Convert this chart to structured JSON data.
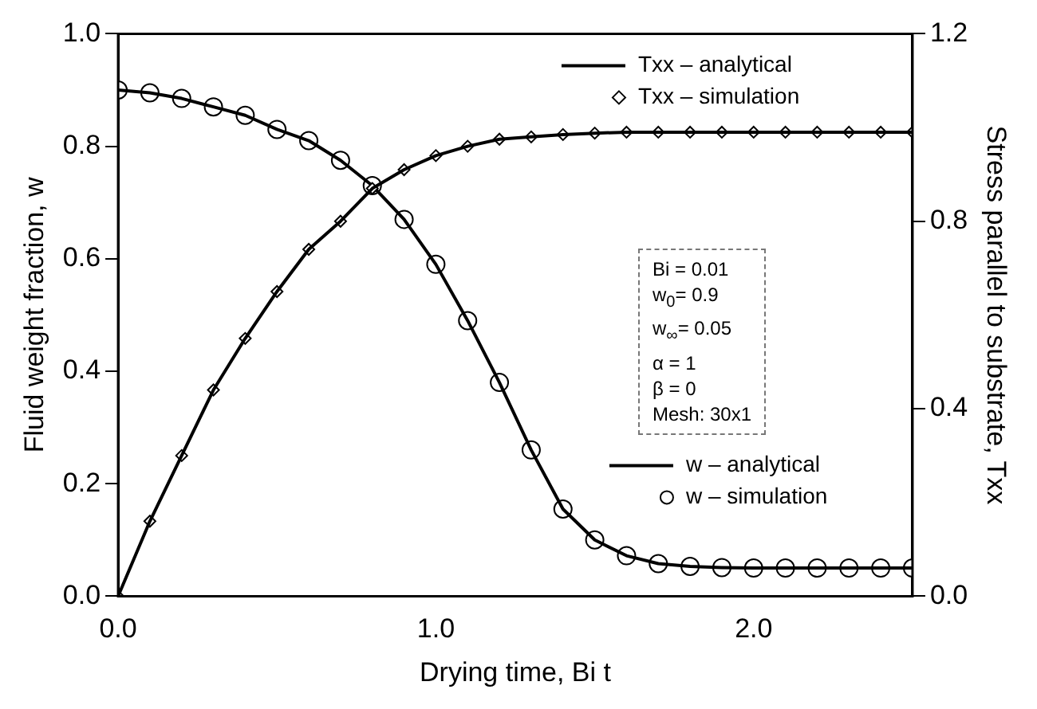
{
  "chart_data": {
    "type": "line",
    "xlabel": "Drying time, Bi t",
    "ylabel": "Fluid weight fraction, w",
    "y2label": "Stress parallel to substrate, Txx",
    "xlim": [
      0,
      2.5
    ],
    "xticks": [
      {
        "value": 0,
        "label": "0.0"
      },
      {
        "value": 1,
        "label": "1.0"
      },
      {
        "value": 2,
        "label": "2.0"
      }
    ],
    "ylim": [
      0,
      1
    ],
    "yticks": [
      {
        "value": 0,
        "label": "0.0"
      },
      {
        "value": 0.2,
        "label": "0.2"
      },
      {
        "value": 0.4,
        "label": "0.4"
      },
      {
        "value": 0.6,
        "label": "0.6"
      },
      {
        "value": 0.8,
        "label": "0.8"
      },
      {
        "value": 1,
        "label": "1.0"
      }
    ],
    "y2lim": [
      0,
      1.2
    ],
    "y2ticks": [
      {
        "value": 0,
        "label": "0.0"
      },
      {
        "value": 0.4,
        "label": "0.4"
      },
      {
        "value": 0.8,
        "label": "0.8"
      },
      {
        "value": 1.2,
        "label": "1.2"
      }
    ],
    "grid": false,
    "legend": "right",
    "x": [
      0,
      0.1,
      0.2,
      0.3,
      0.4,
      0.5,
      0.6,
      0.7,
      0.8,
      0.9,
      1.0,
      1.1,
      1.2,
      1.3,
      1.4,
      1.5,
      1.6,
      1.7,
      1.8,
      1.9,
      2.0,
      2.1,
      2.2,
      2.3,
      2.4,
      2.5
    ],
    "series": [
      {
        "name": "Txx – analytical",
        "type": "line",
        "axis": "y2",
        "color": "#000000",
        "marker": "none",
        "line_style": "solid",
        "values": [
          0,
          0.16,
          0.3,
          0.44,
          0.55,
          0.65,
          0.74,
          0.8,
          0.87,
          0.91,
          0.94,
          0.96,
          0.975,
          0.98,
          0.985,
          0.988,
          0.99,
          0.99,
          0.99,
          0.99,
          0.99,
          0.99,
          0.99,
          0.99,
          0.99,
          0.99
        ]
      },
      {
        "name": "Txx – simulation",
        "type": "scatter",
        "axis": "y2",
        "color": "#000000",
        "marker": "diamond",
        "values": [
          0,
          0.16,
          0.3,
          0.44,
          0.55,
          0.65,
          0.74,
          0.8,
          0.87,
          0.91,
          0.94,
          0.96,
          0.975,
          0.98,
          0.985,
          0.988,
          0.99,
          0.99,
          0.99,
          0.99,
          0.99,
          0.99,
          0.99,
          0.99,
          0.99,
          0.99
        ]
      },
      {
        "name": "w – analytical",
        "type": "line",
        "color": "#000000",
        "marker": "none",
        "line_style": "solid",
        "values": [
          0.9,
          0.895,
          0.885,
          0.87,
          0.855,
          0.83,
          0.81,
          0.775,
          0.73,
          0.67,
          0.59,
          0.49,
          0.38,
          0.26,
          0.155,
          0.1,
          0.072,
          0.058,
          0.053,
          0.051,
          0.05,
          0.05,
          0.05,
          0.05,
          0.05,
          0.05
        ]
      },
      {
        "name": "w – simulation",
        "type": "scatter",
        "color": "#000000",
        "marker": "circle",
        "values": [
          0.9,
          0.895,
          0.885,
          0.87,
          0.855,
          0.83,
          0.81,
          0.775,
          0.73,
          0.67,
          0.59,
          0.49,
          0.38,
          0.26,
          0.155,
          0.1,
          0.072,
          0.058,
          0.053,
          0.051,
          0.05,
          0.05,
          0.05,
          0.05,
          0.05,
          0.05
        ]
      }
    ],
    "annotations": [
      "Bi = 0.01",
      "w$_{0}$= 0.9",
      "w$_{∞}$= 0.05",
      "α = 1",
      "β = 0",
      "Mesh: 30x1"
    ]
  }
}
